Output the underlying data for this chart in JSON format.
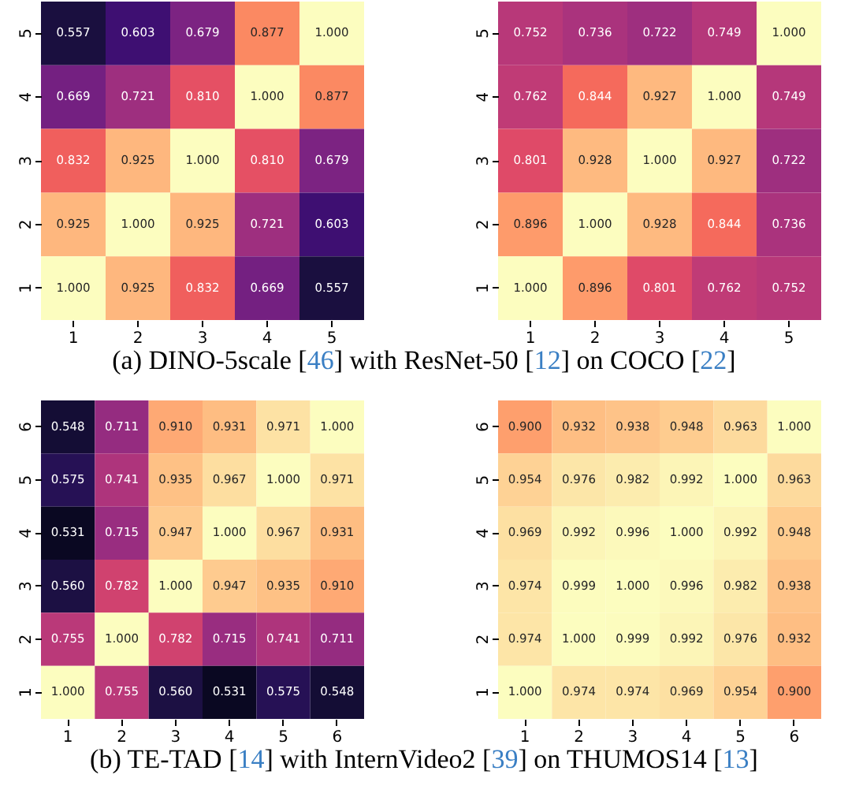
{
  "chart_data": [
    {
      "type": "heatmap",
      "categories": [
        "1",
        "2",
        "3",
        "4",
        "5"
      ],
      "y_categories": [
        "5",
        "4",
        "3",
        "2",
        "1"
      ],
      "data_labels": true,
      "annotations": [
        "(a) DINO-5scale [46] with ResNet-50 [12] on COCO [22]"
      ],
      "cells": [
        [
          0.557,
          0.603,
          0.679,
          0.877,
          1.0
        ],
        [
          0.669,
          0.721,
          0.81,
          1.0,
          0.877
        ],
        [
          0.832,
          0.925,
          1.0,
          0.81,
          0.679
        ],
        [
          0.925,
          1.0,
          0.925,
          0.721,
          0.603
        ],
        [
          1.0,
          0.925,
          0.832,
          0.669,
          0.557
        ]
      ],
      "cell_labels": [
        [
          "0.557",
          "0.603",
          "0.679",
          "0.877",
          "1.000"
        ],
        [
          "0.669",
          "0.721",
          "0.810",
          "1.000",
          "0.877"
        ],
        [
          "0.832",
          "0.925",
          "1.000",
          "0.810",
          "0.679"
        ],
        [
          "0.925",
          "1.000",
          "0.925",
          "0.721",
          "0.603"
        ],
        [
          "1.000",
          "0.925",
          "0.832",
          "0.669",
          "0.557"
        ]
      ]
    },
    {
      "type": "heatmap",
      "categories": [
        "1",
        "2",
        "3",
        "4",
        "5"
      ],
      "y_categories": [
        "5",
        "4",
        "3",
        "2",
        "1"
      ],
      "data_labels": true,
      "cells": [
        [
          0.752,
          0.736,
          0.722,
          0.749,
          1.0
        ],
        [
          0.762,
          0.844,
          0.927,
          1.0,
          0.749
        ],
        [
          0.801,
          0.928,
          1.0,
          0.927,
          0.722
        ],
        [
          0.896,
          1.0,
          0.928,
          0.844,
          0.736
        ],
        [
          1.0,
          0.896,
          0.801,
          0.762,
          0.752
        ]
      ],
      "cell_labels": [
        [
          "0.752",
          "0.736",
          "0.722",
          "0.749",
          "1.000"
        ],
        [
          "0.762",
          "0.844",
          "0.927",
          "1.000",
          "0.749"
        ],
        [
          "0.801",
          "0.928",
          "1.000",
          "0.927",
          "0.722"
        ],
        [
          "0.896",
          "1.000",
          "0.928",
          "0.844",
          "0.736"
        ],
        [
          "1.000",
          "0.896",
          "0.801",
          "0.762",
          "0.752"
        ]
      ]
    },
    {
      "type": "heatmap",
      "categories": [
        "1",
        "2",
        "3",
        "4",
        "5",
        "6"
      ],
      "y_categories": [
        "6",
        "5",
        "4",
        "3",
        "2",
        "1"
      ],
      "data_labels": true,
      "annotations": [
        "(b) TE-TAD [14] with InternVideo2 [39] on THUMOS14 [13]"
      ],
      "cells": [
        [
          0.548,
          0.711,
          0.91,
          0.931,
          0.971,
          1.0
        ],
        [
          0.575,
          0.741,
          0.935,
          0.967,
          1.0,
          0.971
        ],
        [
          0.531,
          0.715,
          0.947,
          1.0,
          0.967,
          0.931
        ],
        [
          0.56,
          0.782,
          1.0,
          0.947,
          0.935,
          0.91
        ],
        [
          0.755,
          1.0,
          0.782,
          0.715,
          0.741,
          0.711
        ],
        [
          1.0,
          0.755,
          0.56,
          0.531,
          0.575,
          0.548
        ]
      ],
      "cell_labels": [
        [
          "0.548",
          "0.711",
          "0.910",
          "0.931",
          "0.971",
          "1.000"
        ],
        [
          "0.575",
          "0.741",
          "0.935",
          "0.967",
          "1.000",
          "0.971"
        ],
        [
          "0.531",
          "0.715",
          "0.947",
          "1.000",
          "0.967",
          "0.931"
        ],
        [
          "0.560",
          "0.782",
          "1.000",
          "0.947",
          "0.935",
          "0.910"
        ],
        [
          "0.755",
          "1.000",
          "0.782",
          "0.715",
          "0.741",
          "0.711"
        ],
        [
          "1.000",
          "0.755",
          "0.560",
          "0.531",
          "0.575",
          "0.548"
        ]
      ]
    },
    {
      "type": "heatmap",
      "categories": [
        "1",
        "2",
        "3",
        "4",
        "5",
        "6"
      ],
      "y_categories": [
        "6",
        "5",
        "4",
        "3",
        "2",
        "1"
      ],
      "data_labels": true,
      "cells": [
        [
          0.9,
          0.932,
          0.938,
          0.948,
          0.963,
          1.0
        ],
        [
          0.954,
          0.976,
          0.982,
          0.992,
          1.0,
          0.963
        ],
        [
          0.969,
          0.992,
          0.996,
          1.0,
          0.992,
          0.948
        ],
        [
          0.974,
          0.999,
          1.0,
          0.996,
          0.982,
          0.938
        ],
        [
          0.974,
          1.0,
          0.999,
          0.992,
          0.976,
          0.932
        ],
        [
          1.0,
          0.974,
          0.974,
          0.969,
          0.954,
          0.9
        ]
      ],
      "cell_labels": [
        [
          "0.900",
          "0.932",
          "0.938",
          "0.948",
          "0.963",
          "1.000"
        ],
        [
          "0.954",
          "0.976",
          "0.982",
          "0.992",
          "1.000",
          "0.963"
        ],
        [
          "0.969",
          "0.992",
          "0.996",
          "1.000",
          "0.992",
          "0.948"
        ],
        [
          "0.974",
          "0.999",
          "1.000",
          "0.996",
          "0.982",
          "0.938"
        ],
        [
          "0.974",
          "1.000",
          "0.999",
          "0.992",
          "0.976",
          "0.932"
        ],
        [
          "1.000",
          "0.974",
          "0.974",
          "0.969",
          "0.954",
          "0.900"
        ]
      ]
    }
  ]
}
